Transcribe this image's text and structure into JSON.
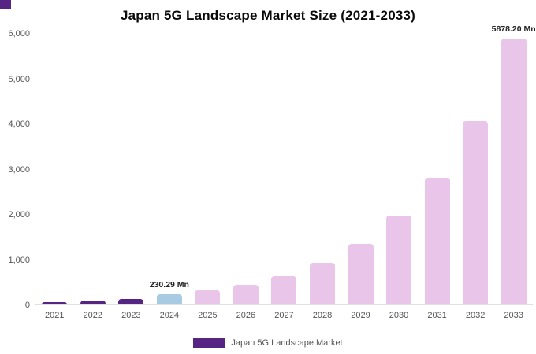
{
  "title": "Japan 5G Landscape Market Size (2021-2033)",
  "legend": {
    "label": "Japan 5G Landscape Market",
    "swatch_color": "#562583"
  },
  "colors": {
    "historical_bar": "#562583",
    "base_year_bar": "#a6cbe3",
    "forecast_bar": "#e9c6e9",
    "axis_text": "#555555",
    "annotation_text": "#222222",
    "background": "#ffffff"
  },
  "chart_data": {
    "type": "bar",
    "title": "Japan 5G Landscape Market Size (2021-2033)",
    "categories": [
      "2021",
      "2022",
      "2023",
      "2024",
      "2025",
      "2026",
      "2027",
      "2028",
      "2029",
      "2030",
      "2031",
      "2032",
      "2033"
    ],
    "values": [
      60,
      85,
      130,
      230.29,
      310,
      440,
      630,
      920,
      1340,
      1960,
      2800,
      4060,
      5878.2
    ],
    "unit": "Mn",
    "bar_colors": [
      "#562583",
      "#562583",
      "#562583",
      "#a6cbe3",
      "#e9c6e9",
      "#e9c6e9",
      "#e9c6e9",
      "#e9c6e9",
      "#e9c6e9",
      "#e9c6e9",
      "#e9c6e9",
      "#e9c6e9",
      "#e9c6e9"
    ],
    "xlabel": "",
    "ylabel": "",
    "ylim": [
      0,
      6000
    ],
    "yticks": [
      {
        "value": 0,
        "label": "0"
      },
      {
        "value": 1000,
        "label": "1,000"
      },
      {
        "value": 2000,
        "label": "2,000"
      },
      {
        "value": 3000,
        "label": "3,000"
      },
      {
        "value": 4000,
        "label": "4,000"
      },
      {
        "value": 5000,
        "label": "5,000"
      },
      {
        "value": 6000,
        "label": "6,000"
      }
    ],
    "grid": false,
    "legend_position": "bottom",
    "annotations": [
      {
        "category": "2024",
        "text": "230.29 Mn"
      },
      {
        "category": "2033",
        "text": "5878.20 Mn"
      }
    ]
  }
}
